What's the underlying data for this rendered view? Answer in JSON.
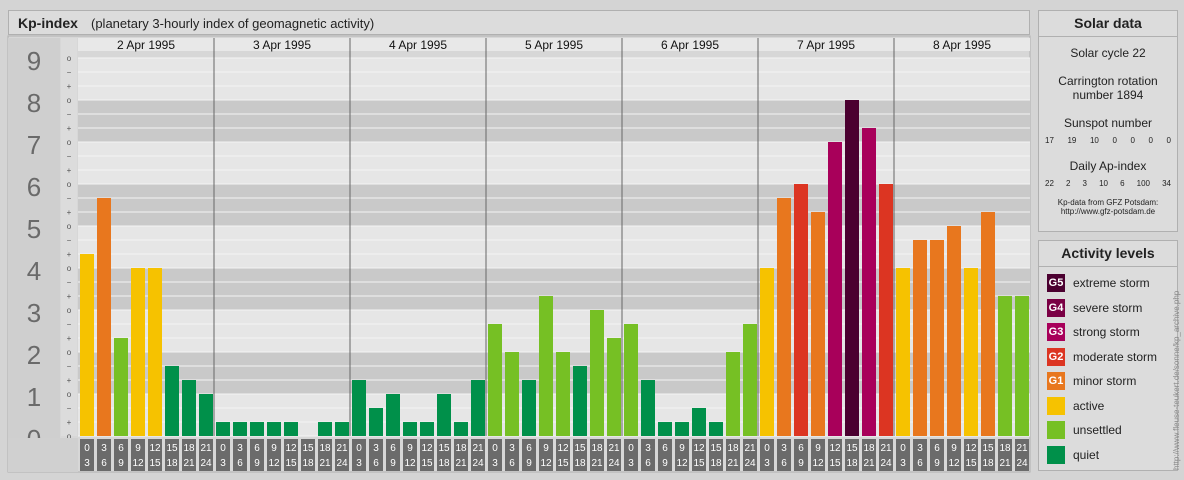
{
  "header": {
    "title": "Kp-index",
    "subtitle": "(planetary 3-hourly index of geomagnetic activity)"
  },
  "chart_data": {
    "type": "bar",
    "title": "Kp-index",
    "subtitle": "(planetary 3-hourly index of geomagnetic activity)",
    "ylim": [
      0,
      9
    ],
    "y_ticks": [
      "0",
      "1",
      "2",
      "3",
      "4",
      "5",
      "6",
      "7",
      "8",
      "9"
    ],
    "minor_ticks": [
      "o",
      "+",
      "−"
    ],
    "days": [
      "2 Apr 1995",
      "3 Apr 1995",
      "4 Apr 1995",
      "5 Apr 1995",
      "6 Apr 1995",
      "7 Apr 1995",
      "8 Apr 1995"
    ],
    "intervals_top": [
      "0",
      "3",
      "6",
      "9",
      "12",
      "15",
      "18",
      "21"
    ],
    "intervals_bottom": [
      "3",
      "6",
      "9",
      "12",
      "15",
      "18",
      "21",
      "24"
    ],
    "values": [
      [
        4.333,
        5.667,
        2.333,
        4.0,
        4.0,
        1.667,
        1.333,
        1.0
      ],
      [
        0.333,
        0.333,
        0.333,
        0.333,
        0.333,
        0.0,
        0.333,
        0.333
      ],
      [
        1.333,
        0.667,
        1.0,
        0.333,
        0.333,
        1.0,
        0.333,
        1.333
      ],
      [
        2.667,
        2.0,
        1.333,
        3.333,
        2.0,
        1.667,
        3.0,
        2.333
      ],
      [
        2.667,
        1.333,
        0.333,
        0.333,
        0.667,
        0.333,
        2.0,
        2.667
      ],
      [
        4.0,
        5.667,
        6.0,
        5.333,
        7.0,
        8.0,
        7.333,
        6.0
      ],
      [
        4.0,
        4.667,
        4.667,
        5.0,
        4.0,
        5.333,
        3.333,
        3.333
      ]
    ],
    "grid": true
  },
  "solar": {
    "title": "Solar data",
    "cycle": "Solar cycle 22",
    "carrington_1": "Carrington rotation",
    "carrington_2": "number 1894",
    "sunspot_label": "Sunspot number",
    "sunspot_values": [
      "17",
      "19",
      "10",
      "0",
      "0",
      "0",
      "0"
    ],
    "ap_label": "Daily Ap-index",
    "ap_values": [
      "22",
      "2",
      "3",
      "10",
      "6",
      "100",
      "34"
    ],
    "source_1": "Kp-data from GFZ Potsdam:",
    "source_2": "http://www.gfz-potsdam.de"
  },
  "activity": {
    "title": "Activity levels",
    "items": [
      {
        "code": "G5",
        "label": "extreme storm",
        "color": "#4b0030"
      },
      {
        "code": "G4",
        "label": "severe storm",
        "color": "#7a0044"
      },
      {
        "code": "G3",
        "label": "strong storm",
        "color": "#a8005a"
      },
      {
        "code": "G2",
        "label": "moderate storm",
        "color": "#dc3522"
      },
      {
        "code": "G1",
        "label": "minor storm",
        "color": "#e8771e"
      },
      {
        "code": "",
        "label": "active",
        "color": "#f6c200"
      },
      {
        "code": "",
        "label": "unsettled",
        "color": "#76c024"
      },
      {
        "code": "",
        "label": "quiet",
        "color": "#00904a"
      }
    ]
  },
  "watermark": "http://www.fleuse-teukert.de/sonne/kp_archive.php"
}
